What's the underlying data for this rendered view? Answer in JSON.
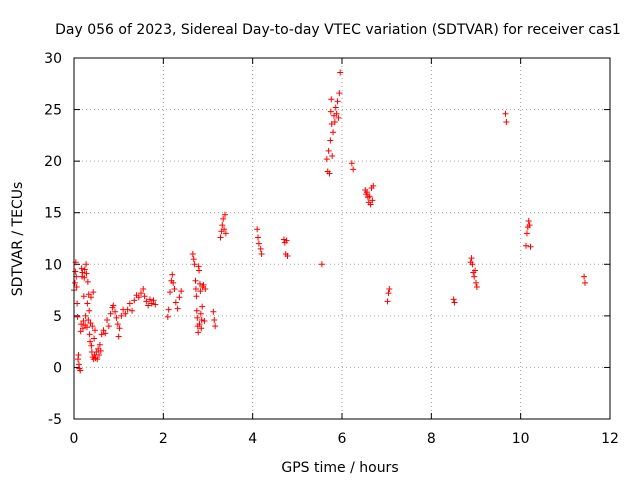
{
  "chart_data": {
    "type": "scatter",
    "title": "Day 056 of 2023, Sidereal Day-to-day VTEC variation (SDTVAR) for receiver cas1",
    "xlabel": "GPS time / hours",
    "ylabel": "SDTVAR / TECUs",
    "xlim": [
      0,
      12
    ],
    "ylim": [
      -5,
      30
    ],
    "xticks": [
      "0",
      "2",
      "4",
      "6",
      "8",
      "10",
      "12"
    ],
    "yticks": [
      "-5",
      "0",
      "5",
      "10",
      "15",
      "20",
      "25",
      "30"
    ],
    "grid": true,
    "series": [
      {
        "name": "SDTVAR",
        "marker": "plus",
        "color": "#ff0000",
        "points": [
          [
            0.0,
            7.5
          ],
          [
            0.02,
            8.2
          ],
          [
            0.03,
            9.3
          ],
          [
            0.04,
            10.2
          ],
          [
            0.05,
            8.8
          ],
          [
            0.06,
            7.8
          ],
          [
            0.07,
            6.2
          ],
          [
            0.08,
            4.9
          ],
          [
            0.09,
            0.8
          ],
          [
            0.1,
            1.2
          ],
          [
            0.11,
            0.3
          ],
          [
            0.12,
            -0.1
          ],
          [
            0.14,
            -0.3
          ],
          [
            0.15,
            3.5
          ],
          [
            0.16,
            4.2
          ],
          [
            0.17,
            9.6
          ],
          [
            0.18,
            8.8
          ],
          [
            0.19,
            9.2
          ],
          [
            0.2,
            3.8
          ],
          [
            0.21,
            4.5
          ],
          [
            0.22,
            6.9
          ],
          [
            0.23,
            8.7
          ],
          [
            0.24,
            9.5
          ],
          [
            0.25,
            4.1
          ],
          [
            0.26,
            5.0
          ],
          [
            0.27,
            10.0
          ],
          [
            0.28,
            9.1
          ],
          [
            0.29,
            3.9
          ],
          [
            0.3,
            6.2
          ],
          [
            0.31,
            8.3
          ],
          [
            0.32,
            4.6
          ],
          [
            0.33,
            7.1
          ],
          [
            0.34,
            5.5
          ],
          [
            0.35,
            3.2
          ],
          [
            0.36,
            2.5
          ],
          [
            0.37,
            4.3
          ],
          [
            0.38,
            6.8
          ],
          [
            0.39,
            2.1
          ],
          [
            0.4,
            1.5
          ],
          [
            0.41,
            4.0
          ],
          [
            0.42,
            1.0
          ],
          [
            0.43,
            7.3
          ],
          [
            0.44,
            0.8
          ],
          [
            0.45,
            2.8
          ],
          [
            0.46,
            1.2
          ],
          [
            0.47,
            3.6
          ],
          [
            0.48,
            0.9
          ],
          [
            0.5,
            1.5
          ],
          [
            0.52,
            0.8
          ],
          [
            0.54,
            1.8
          ],
          [
            0.56,
            1.2
          ],
          [
            0.58,
            2.2
          ],
          [
            0.6,
            1.6
          ],
          [
            0.62,
            3.2
          ],
          [
            0.66,
            3.6
          ],
          [
            0.7,
            3.3
          ],
          [
            0.74,
            4.6
          ],
          [
            0.78,
            4.0
          ],
          [
            0.82,
            5.2
          ],
          [
            0.86,
            5.8
          ],
          [
            0.88,
            6.0
          ],
          [
            0.92,
            5.4
          ],
          [
            0.95,
            4.8
          ],
          [
            0.98,
            4.2
          ],
          [
            1.0,
            3.0
          ],
          [
            1.02,
            3.8
          ],
          [
            1.06,
            5.0
          ],
          [
            1.1,
            5.6
          ],
          [
            1.15,
            5.2
          ],
          [
            1.2,
            5.6
          ],
          [
            1.25,
            6.2
          ],
          [
            1.3,
            5.5
          ],
          [
            1.35,
            6.5
          ],
          [
            1.4,
            7.0
          ],
          [
            1.45,
            6.8
          ],
          [
            1.5,
            7.2
          ],
          [
            1.55,
            7.6
          ],
          [
            1.58,
            6.9
          ],
          [
            1.62,
            6.4
          ],
          [
            1.66,
            6.0
          ],
          [
            1.7,
            6.6
          ],
          [
            1.74,
            6.2
          ],
          [
            1.78,
            6.5
          ],
          [
            1.82,
            6.1
          ],
          [
            2.1,
            4.9
          ],
          [
            2.12,
            5.6
          ],
          [
            2.15,
            7.3
          ],
          [
            2.18,
            8.4
          ],
          [
            2.2,
            9.0
          ],
          [
            2.22,
            8.2
          ],
          [
            2.25,
            7.6
          ],
          [
            2.28,
            6.3
          ],
          [
            2.32,
            5.7
          ],
          [
            2.36,
            6.8
          ],
          [
            2.4,
            7.4
          ],
          [
            2.66,
            11.0
          ],
          [
            2.68,
            10.5
          ],
          [
            2.7,
            10.0
          ],
          [
            2.72,
            8.4
          ],
          [
            2.73,
            7.6
          ],
          [
            2.74,
            6.9
          ],
          [
            2.75,
            5.5
          ],
          [
            2.76,
            4.8
          ],
          [
            2.77,
            4.0
          ],
          [
            2.78,
            3.4
          ],
          [
            2.79,
            9.8
          ],
          [
            2.8,
            9.4
          ],
          [
            2.81,
            4.2
          ],
          [
            2.82,
            8.1
          ],
          [
            2.83,
            7.4
          ],
          [
            2.84,
            5.2
          ],
          [
            2.85,
            3.8
          ],
          [
            2.86,
            4.6
          ],
          [
            2.87,
            5.9
          ],
          [
            2.88,
            7.8
          ],
          [
            2.9,
            8.0
          ],
          [
            2.92,
            4.5
          ],
          [
            2.94,
            7.6
          ],
          [
            3.12,
            5.4
          ],
          [
            3.14,
            4.6
          ],
          [
            3.16,
            4.0
          ],
          [
            3.28,
            12.6
          ],
          [
            3.3,
            13.2
          ],
          [
            3.32,
            13.8
          ],
          [
            3.34,
            14.4
          ],
          [
            3.36,
            13.4
          ],
          [
            3.38,
            14.8
          ],
          [
            3.4,
            13.0
          ],
          [
            4.1,
            13.4
          ],
          [
            4.12,
            12.6
          ],
          [
            4.14,
            12.0
          ],
          [
            4.18,
            11.5
          ],
          [
            4.2,
            11.0
          ],
          [
            4.7,
            12.4
          ],
          [
            4.72,
            12.1
          ],
          [
            4.74,
            11.0
          ],
          [
            4.76,
            12.3
          ],
          [
            4.78,
            10.8
          ],
          [
            5.55,
            10.0
          ],
          [
            5.66,
            20.2
          ],
          [
            5.68,
            19.0
          ],
          [
            5.7,
            21.0
          ],
          [
            5.72,
            18.8
          ],
          [
            5.74,
            22.0
          ],
          [
            5.75,
            24.8
          ],
          [
            5.76,
            26.0
          ],
          [
            5.77,
            23.6
          ],
          [
            5.78,
            20.5
          ],
          [
            5.8,
            22.8
          ],
          [
            5.82,
            24.4
          ],
          [
            5.84,
            23.8
          ],
          [
            5.86,
            25.2
          ],
          [
            5.88,
            24.6
          ],
          [
            5.9,
            25.8
          ],
          [
            5.92,
            24.2
          ],
          [
            5.94,
            26.6
          ],
          [
            5.96,
            28.6
          ],
          [
            6.22,
            19.8
          ],
          [
            6.25,
            19.2
          ],
          [
            6.52,
            17.2
          ],
          [
            6.54,
            16.8
          ],
          [
            6.56,
            17.0
          ],
          [
            6.58,
            16.5
          ],
          [
            6.6,
            16.0
          ],
          [
            6.62,
            16.6
          ],
          [
            6.64,
            15.8
          ],
          [
            6.66,
            17.4
          ],
          [
            6.68,
            16.2
          ],
          [
            6.7,
            17.6
          ],
          [
            7.02,
            6.4
          ],
          [
            7.04,
            7.2
          ],
          [
            7.06,
            7.6
          ],
          [
            8.5,
            6.6
          ],
          [
            8.52,
            6.3
          ],
          [
            8.88,
            10.2
          ],
          [
            8.9,
            10.6
          ],
          [
            8.92,
            10.0
          ],
          [
            8.94,
            9.2
          ],
          [
            8.96,
            8.8
          ],
          [
            8.98,
            9.4
          ],
          [
            9.0,
            8.2
          ],
          [
            9.02,
            7.8
          ],
          [
            9.66,
            24.6
          ],
          [
            9.68,
            23.8
          ],
          [
            10.12,
            11.8
          ],
          [
            10.14,
            13.0
          ],
          [
            10.16,
            13.6
          ],
          [
            10.18,
            14.2
          ],
          [
            10.2,
            13.8
          ],
          [
            10.22,
            11.7
          ],
          [
            11.42,
            8.8
          ],
          [
            11.44,
            8.2
          ]
        ]
      }
    ]
  }
}
